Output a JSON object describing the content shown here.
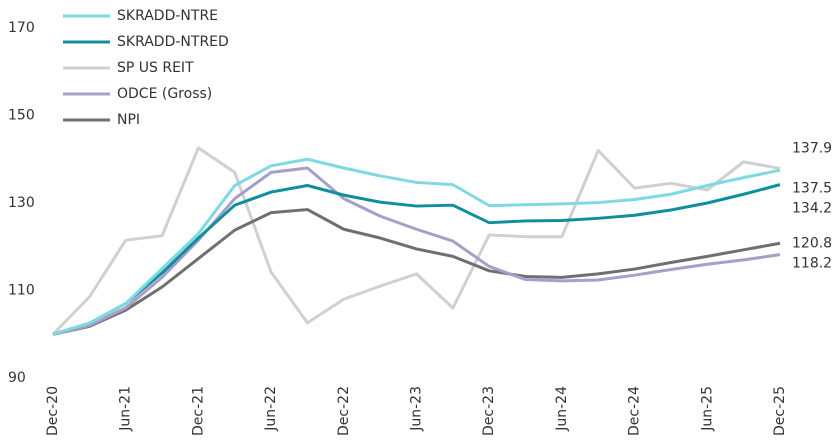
{
  "chart_data": {
    "type": "line",
    "categories": [
      "Dec-20",
      null,
      "Jun-21",
      null,
      "Dec-21",
      null,
      "Jun-22",
      null,
      "Dec-22",
      null,
      "Jun-23",
      null,
      "Dec-23",
      null,
      "Jun-24",
      null,
      "Dec-24",
      null,
      "Jun-25",
      null,
      "Dec-25"
    ],
    "ylim": [
      90,
      170
    ],
    "yticks": [
      90,
      110,
      130,
      150,
      170
    ],
    "grid": false,
    "legend": "top-left",
    "series": [
      {
        "name": "SKRADD-NTRE",
        "color": "#7fd9e1",
        "values": [
          100,
          102.5,
          107,
          115,
          123,
          134,
          138.5,
          140,
          138,
          136.2,
          134.7,
          134.2,
          129.4,
          129.6,
          129.8,
          130.1,
          130.8,
          132,
          134,
          135.8,
          137.5
        ]
      },
      {
        "name": "SKRADD-NTRED",
        "color": "#0f8f9c",
        "values": [
          100,
          102.5,
          107,
          114,
          122,
          129.5,
          132.5,
          134,
          131.8,
          130.2,
          129.3,
          129.5,
          125.5,
          125.9,
          126,
          126.5,
          127.2,
          128.4,
          130,
          132,
          134.2
        ]
      },
      {
        "name": "SP US REIT",
        "color": "#d0d0d0",
        "values": [
          100,
          108.5,
          121.5,
          122.5,
          142.6,
          137,
          114.2,
          102.6,
          108,
          111,
          113.8,
          106,
          122.7,
          122.3,
          122.3,
          142,
          133.4,
          134.5,
          133,
          139.4,
          137.9
        ]
      },
      {
        "name": "ODCE (Gross)",
        "color": "#a99dc9",
        "values": [
          100,
          102,
          106,
          113,
          121.5,
          131,
          137,
          138,
          131,
          127,
          124,
          121.3,
          115.5,
          112.5,
          112.2,
          112.4,
          113.5,
          114.8,
          116,
          117,
          118.2
        ]
      },
      {
        "name": "NPI",
        "color": "#6f6f6f",
        "values": [
          100,
          101.8,
          105.5,
          110.8,
          117.3,
          123.8,
          127.8,
          128.5,
          124,
          122,
          119.5,
          117.8,
          114.5,
          113.2,
          113,
          113.8,
          114.9,
          116.4,
          117.8,
          119.3,
          120.8
        ]
      }
    ]
  }
}
